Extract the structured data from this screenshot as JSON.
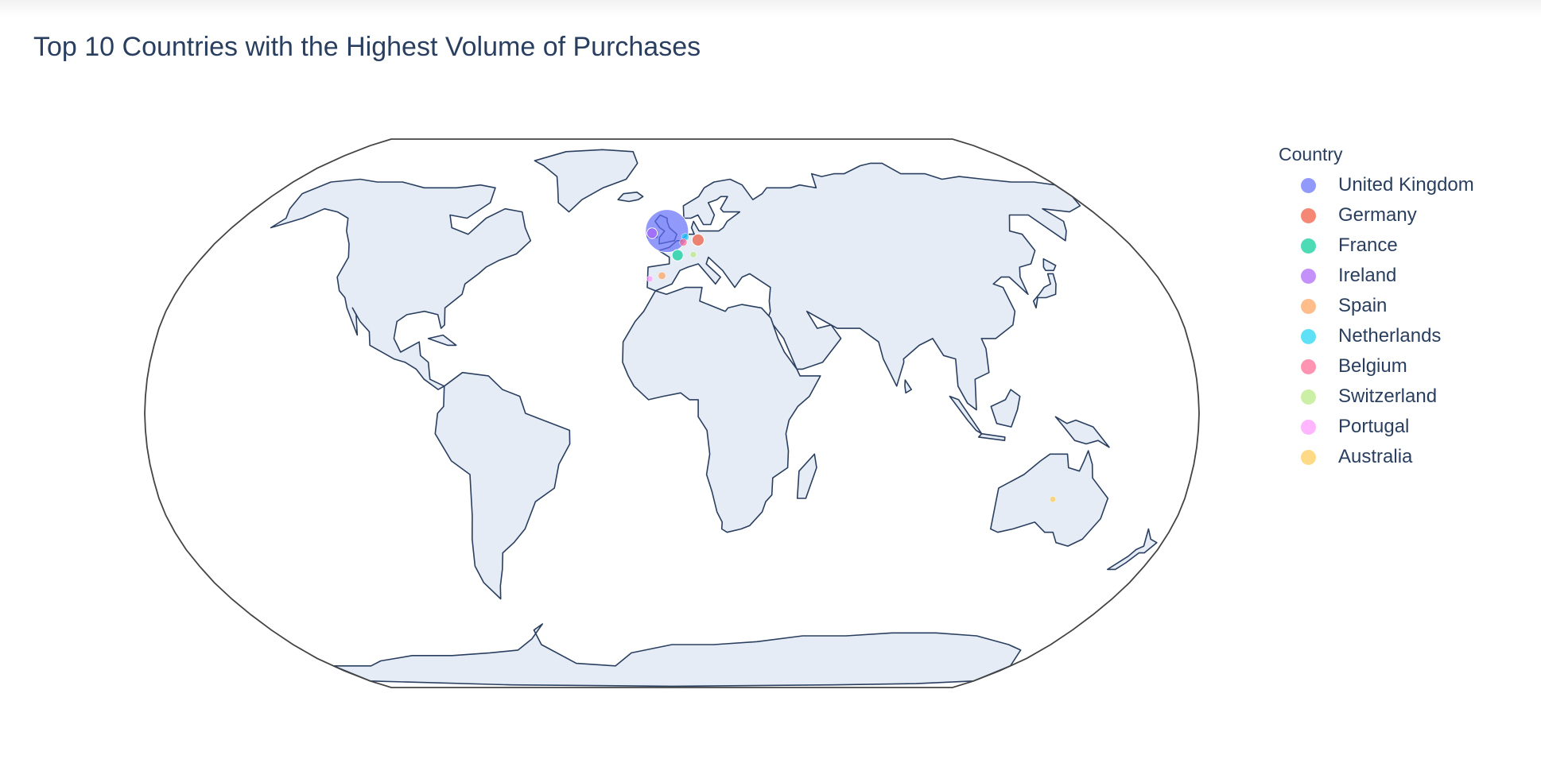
{
  "chart_data": {
    "type": "scatter_geo",
    "title": "Top 10 Countries with the Highest Volume of Purchases",
    "projection": "robinson",
    "legend": {
      "title": "Country",
      "placement": "right",
      "items": [
        {
          "name": "United Kingdom",
          "color": "#636efa"
        },
        {
          "name": "Germany",
          "color": "#ef553b"
        },
        {
          "name": "France",
          "color": "#00cc96"
        },
        {
          "name": "Ireland",
          "color": "#ab63fa"
        },
        {
          "name": "Spain",
          "color": "#ffa15a"
        },
        {
          "name": "Netherlands",
          "color": "#19d3f3"
        },
        {
          "name": "Belgium",
          "color": "#ff6692"
        },
        {
          "name": "Switzerland",
          "color": "#b6e880"
        },
        {
          "name": "Portugal",
          "color": "#ff97ff"
        },
        {
          "name": "Australia",
          "color": "#fecb52"
        }
      ]
    },
    "points": [
      {
        "country": "United Kingdom",
        "lon": -2.0,
        "lat": 54.0,
        "relative_size": 1.0
      },
      {
        "country": "Germany",
        "lon": 10.4,
        "lat": 51.2,
        "relative_size": 0.08
      },
      {
        "country": "France",
        "lon": 2.2,
        "lat": 46.6,
        "relative_size": 0.07
      },
      {
        "country": "Ireland",
        "lon": -8.0,
        "lat": 53.3,
        "relative_size": 0.06
      },
      {
        "country": "Spain",
        "lon": -3.7,
        "lat": 40.4,
        "relative_size": 0.03
      },
      {
        "country": "Netherlands",
        "lon": 5.3,
        "lat": 52.1,
        "relative_size": 0.03
      },
      {
        "country": "Belgium",
        "lon": 4.5,
        "lat": 50.5,
        "relative_size": 0.03
      },
      {
        "country": "Switzerland",
        "lon": 8.2,
        "lat": 46.8,
        "relative_size": 0.02
      },
      {
        "country": "Portugal",
        "lon": -8.2,
        "lat": 39.5,
        "relative_size": 0.02
      },
      {
        "country": "Australia",
        "lon": 133.8,
        "lat": -25.3,
        "relative_size": 0.02
      }
    ],
    "land_color": "#e5ecf6",
    "coastline_color": "#2a3f5f",
    "frame_color": "#444444"
  }
}
